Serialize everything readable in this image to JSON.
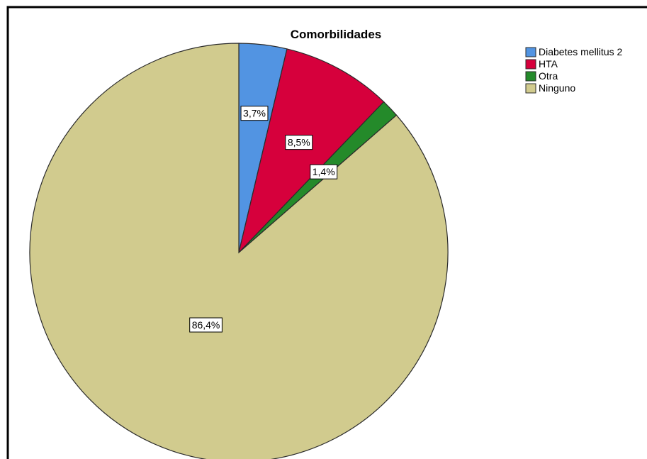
{
  "chart_data": {
    "type": "pie",
    "title": "Comorbilidades",
    "start_angle": "12 o'clock",
    "direction": "clockwise",
    "legend_position": "top-right",
    "slices": [
      {
        "label": "Diabetes mellitus 2",
        "value": 3.7,
        "value_label": "3,7%",
        "color": "#5294e2"
      },
      {
        "label": "HTA",
        "value": 8.5,
        "value_label": "8,5%",
        "color": "#d6003c"
      },
      {
        "label": "Otra",
        "value": 1.4,
        "value_label": "1,4%",
        "color": "#248a2a"
      },
      {
        "label": "Ninguno",
        "value": 86.4,
        "value_label": "86,4%",
        "color": "#d1cb8e"
      }
    ]
  }
}
